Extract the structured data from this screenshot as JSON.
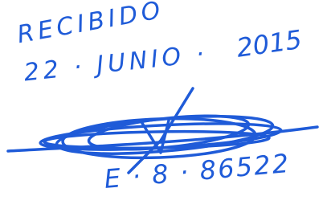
{
  "stamp": {
    "label": "RECIBIDO",
    "date": "22 · JUNIO ·",
    "year": "2015",
    "reference": "E · 8 · 86522"
  }
}
